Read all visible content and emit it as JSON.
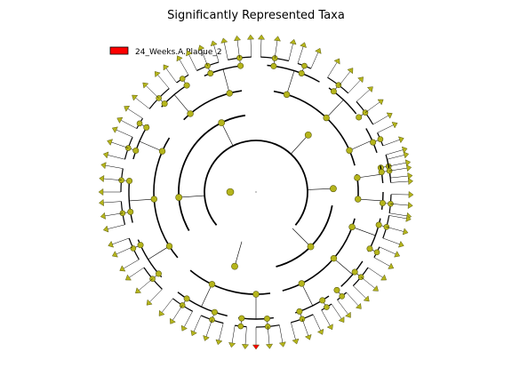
{
  "title": "Significantly Represented Taxa",
  "legend": [
    {
      "label": "24_Weeks.A.Plaque_2",
      "color": "#ff0000"
    }
  ],
  "colors": {
    "node_fill": "#b5b51b",
    "node_stroke": "#5a5a10",
    "highlight": "#ff0000",
    "edge": "#000000"
  }
}
